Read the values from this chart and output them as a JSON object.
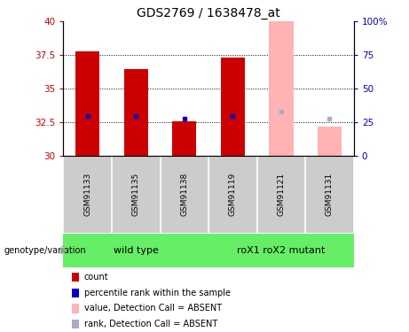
{
  "title": "GDS2769 / 1638478_at",
  "samples": [
    "GSM91133",
    "GSM91135",
    "GSM91138",
    "GSM91119",
    "GSM91121",
    "GSM91131"
  ],
  "ylim": [
    30,
    40
  ],
  "yticks": [
    30,
    32.5,
    35,
    37.5,
    40
  ],
  "right_yticks": [
    0,
    25,
    50,
    75,
    100
  ],
  "right_ylim": [
    0,
    100
  ],
  "bar_values": [
    37.8,
    36.5,
    32.6,
    37.3,
    40.0,
    32.2
  ],
  "bar_colors": [
    "#cc0000",
    "#cc0000",
    "#cc0000",
    "#cc0000",
    "#ffb3b3",
    "#ffb3b3"
  ],
  "rank_values": [
    33.0,
    33.0,
    32.8,
    33.0,
    33.3,
    32.8
  ],
  "rank_colors": [
    "#0000cc",
    "#0000cc",
    "#0000cc",
    "#0000cc",
    "#aaaacc",
    "#aaaacc"
  ],
  "baseline": 30,
  "bar_width": 0.5,
  "bg_color": "#ffffff",
  "left_tick_color": "#cc0000",
  "right_tick_color": "#0000bb",
  "group_bg": "#cccccc",
  "wt_color": "#66ee66",
  "mut_color": "#66ee66",
  "legend_items": [
    {
      "label": "count",
      "color": "#cc0000"
    },
    {
      "label": "percentile rank within the sample",
      "color": "#0000cc"
    },
    {
      "label": "value, Detection Call = ABSENT",
      "color": "#ffb3b3"
    },
    {
      "label": "rank, Detection Call = ABSENT",
      "color": "#aaaacc"
    }
  ]
}
